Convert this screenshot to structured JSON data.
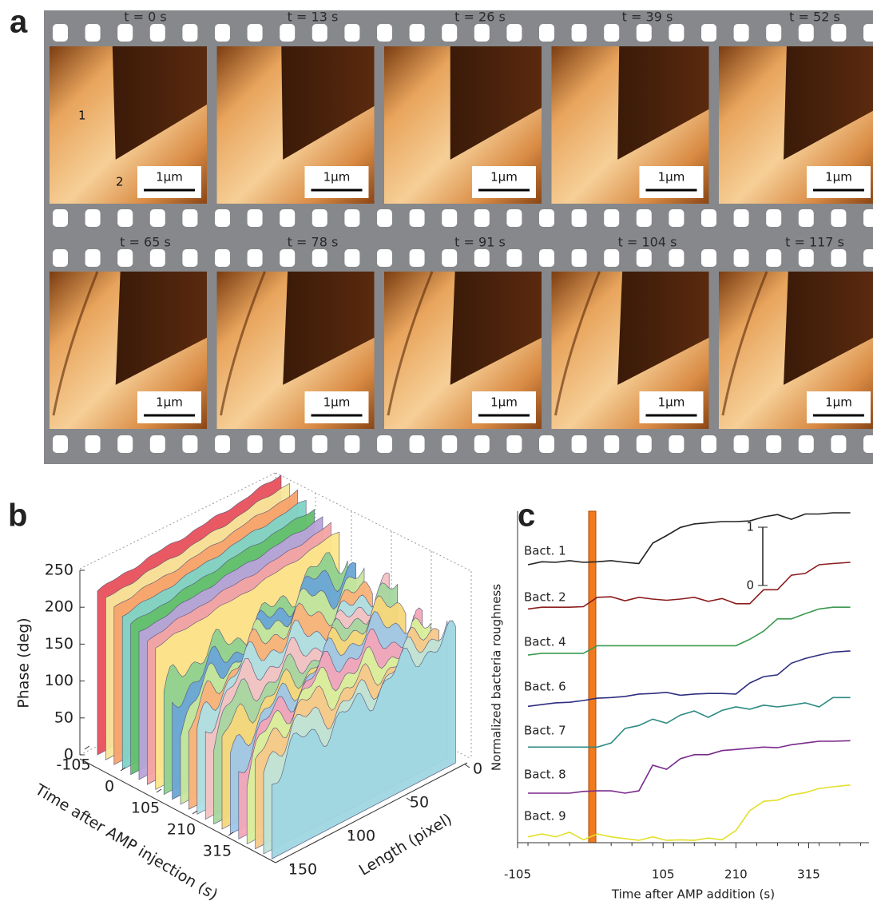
{
  "panel_a": {
    "label": "a",
    "times": [
      "t = 0 s",
      "t = 13 s",
      "t = 26 s",
      "t = 39 s",
      "t = 52 s",
      "t = 65 s",
      "t = 78 s",
      "t = 91 s",
      "t = 104 s",
      "t = 117 s"
    ],
    "scale_bar": "1μm",
    "cell_labels": [
      "1",
      "2"
    ]
  },
  "panel_b": {
    "label": "b",
    "z_label": "Phase (deg)",
    "zlim": [
      0,
      250
    ],
    "zticks": [
      0,
      50,
      100,
      150,
      200,
      250
    ],
    "time_label": "Time after AMP injection (s)",
    "time_ticks": [
      -105,
      0,
      105,
      210,
      315
    ],
    "length_label": "Length (pixel)",
    "length_ticks": [
      0,
      50,
      100,
      150
    ]
  },
  "panel_c": {
    "type": "line",
    "label": "c",
    "x_label": "Time  after AMP addition (s)",
    "y_label": "Normalized bacteria roughness",
    "xlim": [
      -105,
      402
    ],
    "xticks": [
      -105,
      105,
      210,
      315
    ],
    "ylim": [
      0,
      5.77
    ],
    "scale_ticks": [
      0,
      1
    ],
    "x": [
      -90,
      -70,
      -50,
      -30,
      -10,
      10,
      30,
      50,
      70,
      90,
      110,
      130,
      150,
      170,
      190,
      210,
      230,
      250,
      270,
      290,
      310,
      330,
      350,
      375
    ],
    "series": [
      {
        "name": "Bact. 1",
        "color": "#222222",
        "values": [
          4.77,
          4.82,
          4.81,
          4.84,
          4.81,
          4.82,
          4.84,
          4.81,
          4.79,
          5.14,
          5.27,
          5.41,
          5.47,
          5.49,
          5.51,
          5.51,
          5.52,
          5.59,
          5.63,
          5.55,
          5.64,
          5.64,
          5.66,
          5.66
        ]
      },
      {
        "name": "Bact. 2",
        "color": "#8b1c1c",
        "values": [
          4.01,
          4.04,
          4.04,
          4.04,
          4.05,
          4.21,
          4.22,
          4.15,
          4.21,
          4.18,
          4.16,
          4.18,
          4.21,
          4.14,
          4.19,
          4.1,
          4.1,
          4.34,
          4.34,
          4.59,
          4.62,
          4.77,
          4.79,
          4.81
        ]
      },
      {
        "name": "Bact. 4",
        "color": "#3c9a50",
        "values": [
          3.22,
          3.25,
          3.25,
          3.25,
          3.25,
          3.38,
          3.38,
          3.38,
          3.38,
          3.38,
          3.38,
          3.38,
          3.38,
          3.38,
          3.38,
          3.38,
          3.49,
          3.63,
          3.84,
          3.84,
          3.93,
          4.01,
          4.04,
          4.04
        ]
      },
      {
        "name": "Bact. 6",
        "color": "#2e2e80",
        "values": [
          2.34,
          2.37,
          2.4,
          2.41,
          2.44,
          2.48,
          2.49,
          2.51,
          2.55,
          2.56,
          2.58,
          2.53,
          2.55,
          2.56,
          2.56,
          2.55,
          2.74,
          2.85,
          2.88,
          3.08,
          3.16,
          3.22,
          3.27,
          3.29
        ]
      },
      {
        "name": "Bact. 7",
        "color": "#2a8a82",
        "values": [
          1.64,
          1.64,
          1.64,
          1.64,
          1.64,
          1.64,
          1.71,
          1.96,
          2.01,
          2.12,
          2.05,
          2.19,
          2.26,
          2.15,
          2.27,
          2.33,
          2.29,
          2.36,
          2.33,
          2.36,
          2.4,
          2.33,
          2.49,
          2.49
        ]
      },
      {
        "name": "Bact. 8",
        "color": "#7a2a8c",
        "values": [
          0.85,
          0.85,
          0.85,
          0.85,
          0.88,
          0.89,
          0.89,
          0.85,
          0.89,
          1.33,
          1.26,
          1.44,
          1.51,
          1.51,
          1.58,
          1.6,
          1.62,
          1.64,
          1.63,
          1.68,
          1.71,
          1.74,
          1.74,
          1.75
        ]
      },
      {
        "name": "Bact. 9",
        "color": "#e2e02a",
        "values": [
          0.1,
          0.15,
          0.1,
          0.18,
          0.05,
          0.15,
          0.1,
          0.07,
          0.04,
          0.1,
          0.04,
          0.05,
          0.04,
          0.08,
          0.05,
          0.21,
          0.55,
          0.71,
          0.73,
          0.82,
          0.86,
          0.93,
          0.96,
          0.99
        ]
      }
    ]
  }
}
